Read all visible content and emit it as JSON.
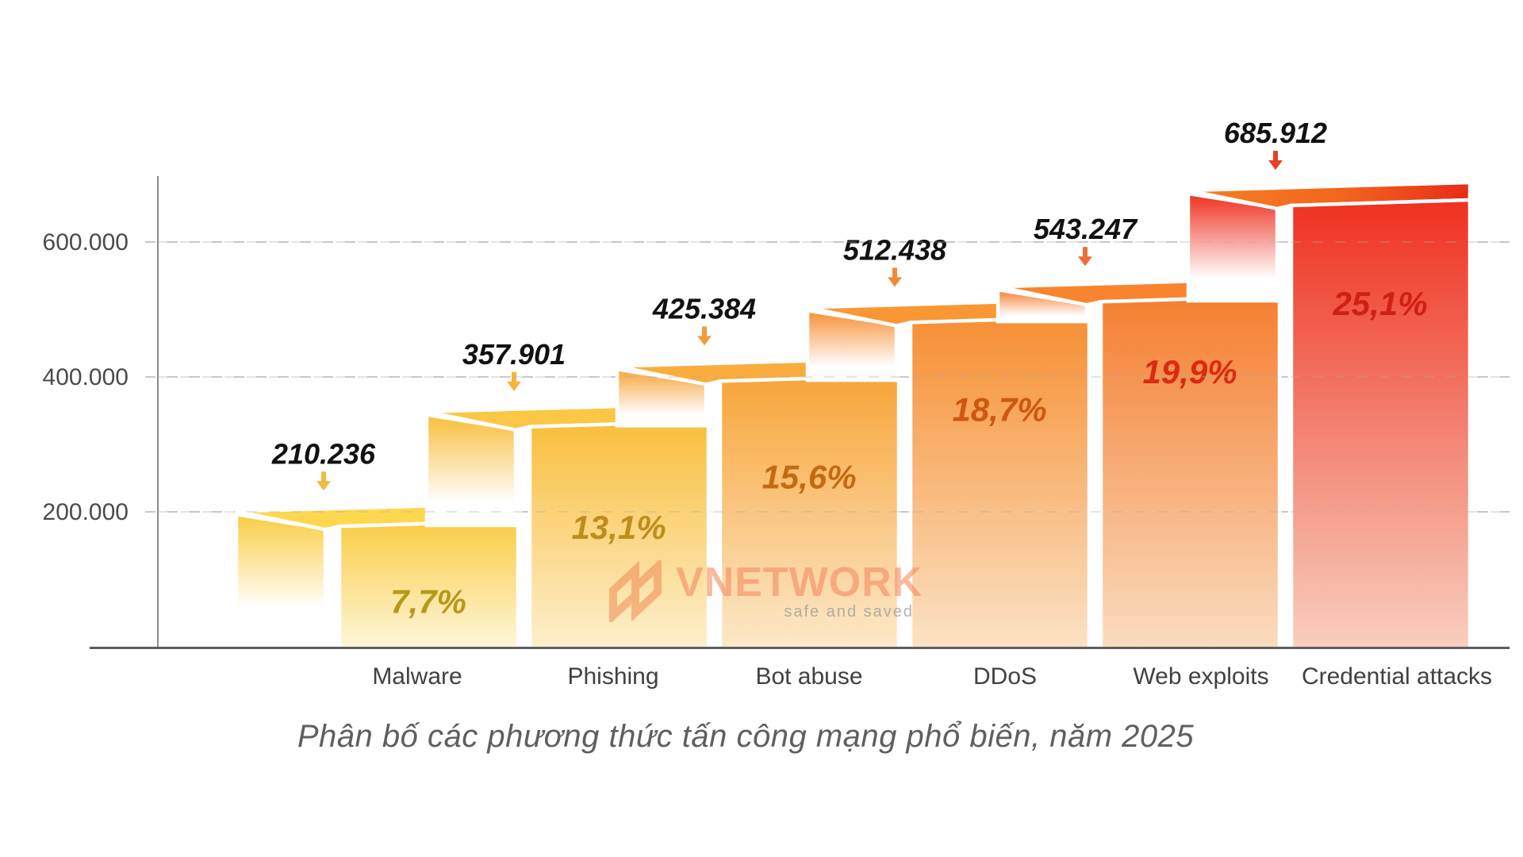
{
  "page": {
    "background": "#ffffff"
  },
  "chart_data": {
    "type": "bar",
    "title": "Phân bố các phương thức tấn công mạng phổ biến, năm 2025",
    "categories": [
      "Malware",
      "Phishing",
      "Bot abuse",
      "DDoS",
      "Web exploits",
      "Credential attacks"
    ],
    "values": [
      210236,
      357901,
      425384,
      512438,
      543247,
      685912
    ],
    "value_labels": [
      "210.236",
      "357.901",
      "425.384",
      "512.438",
      "543.247",
      "685.912"
    ],
    "percent_labels": [
      "7,7%",
      "13,1%",
      "15,6%",
      "18,7%",
      "19,9%",
      "25,1%"
    ],
    "xlabel": "",
    "ylabel": "",
    "ylim": [
      0,
      700000
    ],
    "yticks": [
      {
        "value": 200000,
        "label": "200.000"
      },
      {
        "value": 400000,
        "label": "400.000"
      },
      {
        "value": 600000,
        "label": "600.000"
      }
    ],
    "grid": "dashed-horizontal",
    "legend": "none",
    "bar_styles": [
      {
        "cap": "#FDD84E",
        "top": "#FACC42",
        "bottom": "#FEF6DB",
        "pct_color": "#B7981B",
        "arrow": "#EDBE3D"
      },
      {
        "cap": "#FBC744",
        "top": "#F9BE3C",
        "bottom": "#FDEFCD",
        "pct_color": "#BE8D1C",
        "arrow": "#F3B43C"
      },
      {
        "cap": "#FAAC3E",
        "top": "#F8A43A",
        "bottom": "#FCE8C9",
        "pct_color": "#C46A12",
        "arrow": "#F39C3D"
      },
      {
        "cap": "#F99735",
        "top": "#F68F33",
        "bottom": "#FBE2C4",
        "pct_color": "#CF5710",
        "arrow": "#F08A38"
      },
      {
        "cap": "#F8842E",
        "top": "#F57E30",
        "bottom": "#FADCBF",
        "pct_color": "#DA2A12",
        "arrow": "#ED6F35"
      },
      {
        "cap_gradient": [
          "#F58221",
          "#F3641E",
          "#E72C19"
        ],
        "cap": "#F3641E",
        "top": "#EF3120",
        "bottom": "#F8CFBE",
        "pct_color": "#CF2014",
        "arrow": "#E73F2A"
      }
    ],
    "axis_color": "#8a8a8a",
    "baseline_color": "#5e5e5e",
    "grid_color": "#c8c8c8",
    "tick_label_color": "#4b4b4b",
    "category_label_color": "#414141",
    "value_label_color": "#111111",
    "title_color": "#5f5f5f"
  },
  "watermark": {
    "brand": "VNETWORK",
    "tagline": "safe and saved",
    "brand_color": "rgba(243,138,96,0.6)",
    "tagline_color": "rgba(158,158,158,0.8)",
    "logo_color": "#F0824C"
  }
}
